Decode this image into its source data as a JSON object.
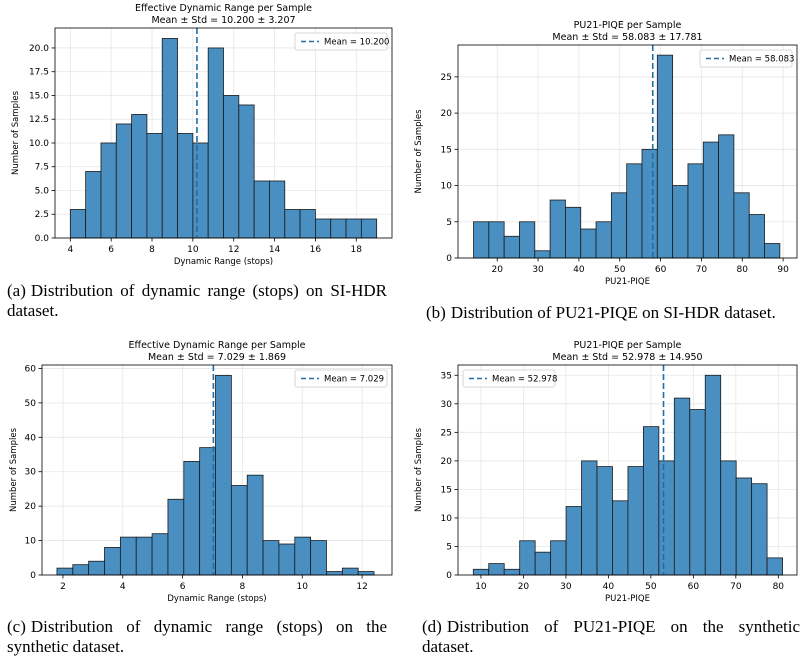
{
  "colors": {
    "bar": "#4a8fc2",
    "bar_edge": "#1a1a1a",
    "mean_line": "#1f6fa8",
    "grid": "#e6e6e6"
  },
  "chart_data": [
    {
      "id": "a",
      "type": "bar",
      "title": "Effective Dynamic Range per Sample",
      "subtitle": "Mean ± Std = 10.200 ± 3.207",
      "xlabel": "Dynamic Range (stops)",
      "ylabel": "Number of Samples",
      "xlim": [
        3.25,
        19.75
      ],
      "ylim": [
        0,
        22.1
      ],
      "xticks": [
        4,
        6,
        8,
        10,
        12,
        14,
        16,
        18
      ],
      "yticks": [
        0.0,
        2.5,
        5.0,
        7.5,
        10.0,
        12.5,
        15.0,
        17.5,
        20.0
      ],
      "ytick_labels": [
        "0.0",
        "2.5",
        "5.0",
        "7.5",
        "10.0",
        "12.5",
        "15.0",
        "17.5",
        "20.0"
      ],
      "grid": true,
      "legend": {
        "position": "top-right",
        "label": "Mean = 10.200"
      },
      "mean": 10.2,
      "bin_start": 4.0,
      "bin_width": 0.75,
      "values": [
        3,
        7,
        10,
        12,
        13,
        11,
        21,
        11,
        10,
        20,
        15,
        14,
        6,
        6,
        3,
        3,
        2,
        2,
        2,
        2
      ]
    },
    {
      "id": "b",
      "type": "bar",
      "title": "PU21-PIQE per Sample",
      "subtitle": "Mean ± Std = 58.083 ± 17.781",
      "xlabel": "PU21-PIQE",
      "ylabel": "Number of Samples",
      "xlim": [
        10.4,
        93.4
      ],
      "ylim": [
        0,
        29.4
      ],
      "xticks": [
        20,
        30,
        40,
        50,
        60,
        70,
        80,
        90
      ],
      "yticks": [
        0,
        5,
        10,
        15,
        20,
        25
      ],
      "ytick_labels": [
        "0",
        "5",
        "10",
        "15",
        "20",
        "25"
      ],
      "grid": true,
      "legend": {
        "position": "top-right",
        "label": "Mean = 58.083"
      },
      "mean": 58.083,
      "bin_start": 14.2,
      "bin_width": 3.75,
      "values": [
        5,
        5,
        3,
        5,
        1,
        8,
        7,
        4,
        5,
        9,
        13,
        15,
        28,
        10,
        13,
        16,
        17,
        9,
        6,
        2
      ]
    },
    {
      "id": "c",
      "type": "bar",
      "title": "Effective Dynamic Range per Sample",
      "subtitle": "Mean ± Std = 7.029 ± 1.869",
      "xlabel": "Dynamic Range (stops)",
      "ylabel": "Number of Samples",
      "xlim": [
        1.3,
        13.0
      ],
      "ylim": [
        0,
        61
      ],
      "xticks": [
        2,
        4,
        6,
        8,
        10,
        12
      ],
      "yticks": [
        0,
        10,
        20,
        30,
        40,
        50,
        60
      ],
      "ytick_labels": [
        "0",
        "10",
        "20",
        "30",
        "40",
        "50",
        "60"
      ],
      "grid": true,
      "legend": {
        "position": "top-right",
        "label": "Mean = 7.029"
      },
      "mean": 7.029,
      "bin_start": 1.8,
      "bin_width": 0.53,
      "values": [
        2,
        3,
        4,
        8,
        11,
        11,
        12,
        22,
        33,
        37,
        58,
        26,
        29,
        10,
        9,
        11,
        10,
        1,
        2,
        1
      ]
    },
    {
      "id": "d",
      "type": "bar",
      "title": "PU21-PIQE per Sample",
      "subtitle": "Mean ± Std = 52.978 ± 14.950",
      "xlabel": "PU21-PIQE",
      "ylabel": "Number of Samples",
      "xlim": [
        4.6,
        84.4
      ],
      "ylim": [
        0,
        36.8
      ],
      "xticks": [
        10,
        20,
        30,
        40,
        50,
        60,
        70,
        80
      ],
      "yticks": [
        0,
        5,
        10,
        15,
        20,
        25,
        30,
        35
      ],
      "ytick_labels": [
        "0",
        "5",
        "10",
        "15",
        "20",
        "25",
        "30",
        "35"
      ],
      "grid": true,
      "legend": {
        "position": "top-left",
        "label": "Mean = 52.978"
      },
      "mean": 52.978,
      "bin_start": 8.2,
      "bin_width": 3.64,
      "values": [
        1,
        2,
        1,
        6,
        4,
        6,
        12,
        20,
        19,
        13,
        19,
        26,
        20,
        31,
        29,
        35,
        20,
        17,
        16,
        3
      ]
    }
  ],
  "captions": [
    {
      "label": "(a)",
      "text": "Distribution of dynamic range (stops) on SI-HDR dataset."
    },
    {
      "label": "(b)",
      "text": "Distribution of PU21-PIQE on SI-HDR dataset."
    },
    {
      "label": "(c)",
      "text": "Distribution of dynamic range (stops) on the synthetic dataset."
    },
    {
      "label": "(d)",
      "text": "Distribution of PU21-PIQE on the synthetic dataset."
    }
  ]
}
